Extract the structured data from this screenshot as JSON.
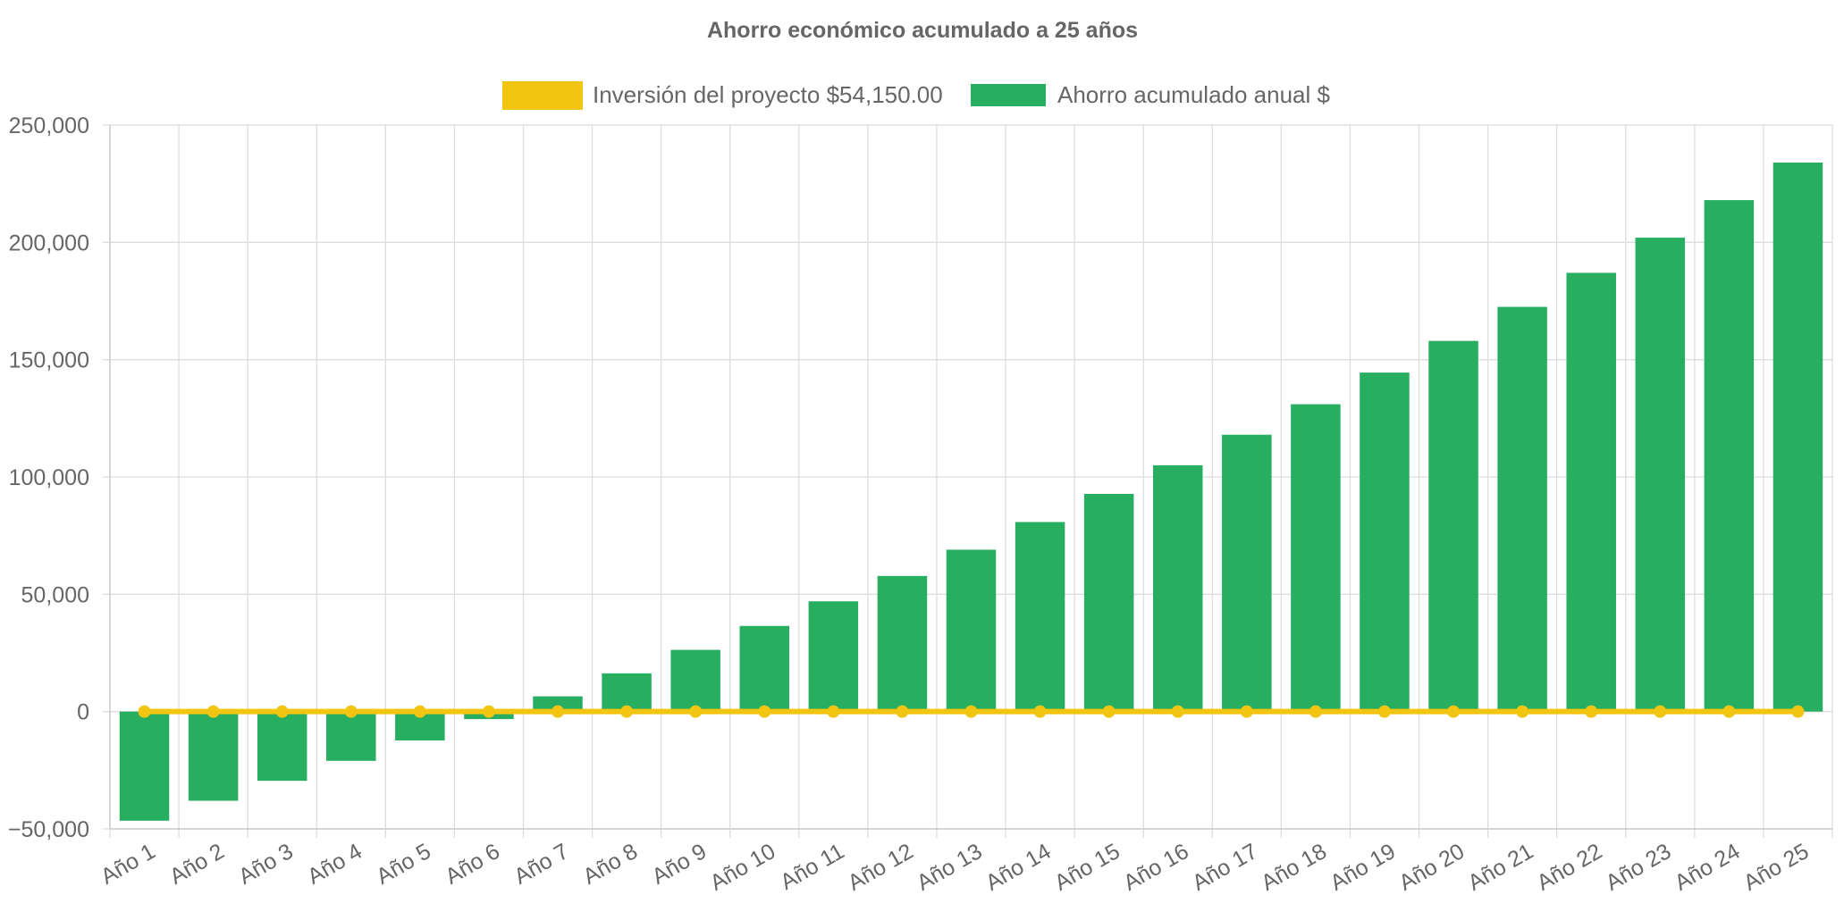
{
  "chart_data": {
    "type": "bar",
    "title": "Ahorro económico acumulado a 25 años",
    "categories": [
      "Año 1",
      "Año 2",
      "Año 3",
      "Año 4",
      "Año 5",
      "Año 6",
      "Año 7",
      "Año 8",
      "Año 9",
      "Año 10",
      "Año 11",
      "Año 12",
      "Año 13",
      "Año 14",
      "Año 15",
      "Año 16",
      "Año 17",
      "Año 18",
      "Año 19",
      "Año 20",
      "Año 21",
      "Año 22",
      "Año 23",
      "Año 24",
      "Año 25"
    ],
    "series": [
      {
        "name": "Inversión del proyecto $54,150.00",
        "type": "line",
        "color": "#f2c512",
        "values": [
          0,
          0,
          0,
          0,
          0,
          0,
          0,
          0,
          0,
          0,
          0,
          0,
          0,
          0,
          0,
          0,
          0,
          0,
          0,
          0,
          0,
          0,
          0,
          0,
          0
        ]
      },
      {
        "name": "Ahorro acumulado anual $",
        "type": "bar",
        "color": "#27ae60",
        "values": [
          -46500,
          -38000,
          -29500,
          -21000,
          -12300,
          -3200,
          6500,
          16300,
          26300,
          36500,
          47000,
          57800,
          69000,
          80800,
          92800,
          105000,
          118000,
          131000,
          144500,
          158000,
          172500,
          187000,
          202000,
          218000,
          234000
        ]
      }
    ],
    "yticks": [
      "250,000",
      "200,000",
      "150,000",
      "100,000",
      "50,000",
      "0",
      "−50,000"
    ],
    "ylim": [
      -50000,
      250000
    ],
    "grid": true,
    "legend_position": "top"
  }
}
